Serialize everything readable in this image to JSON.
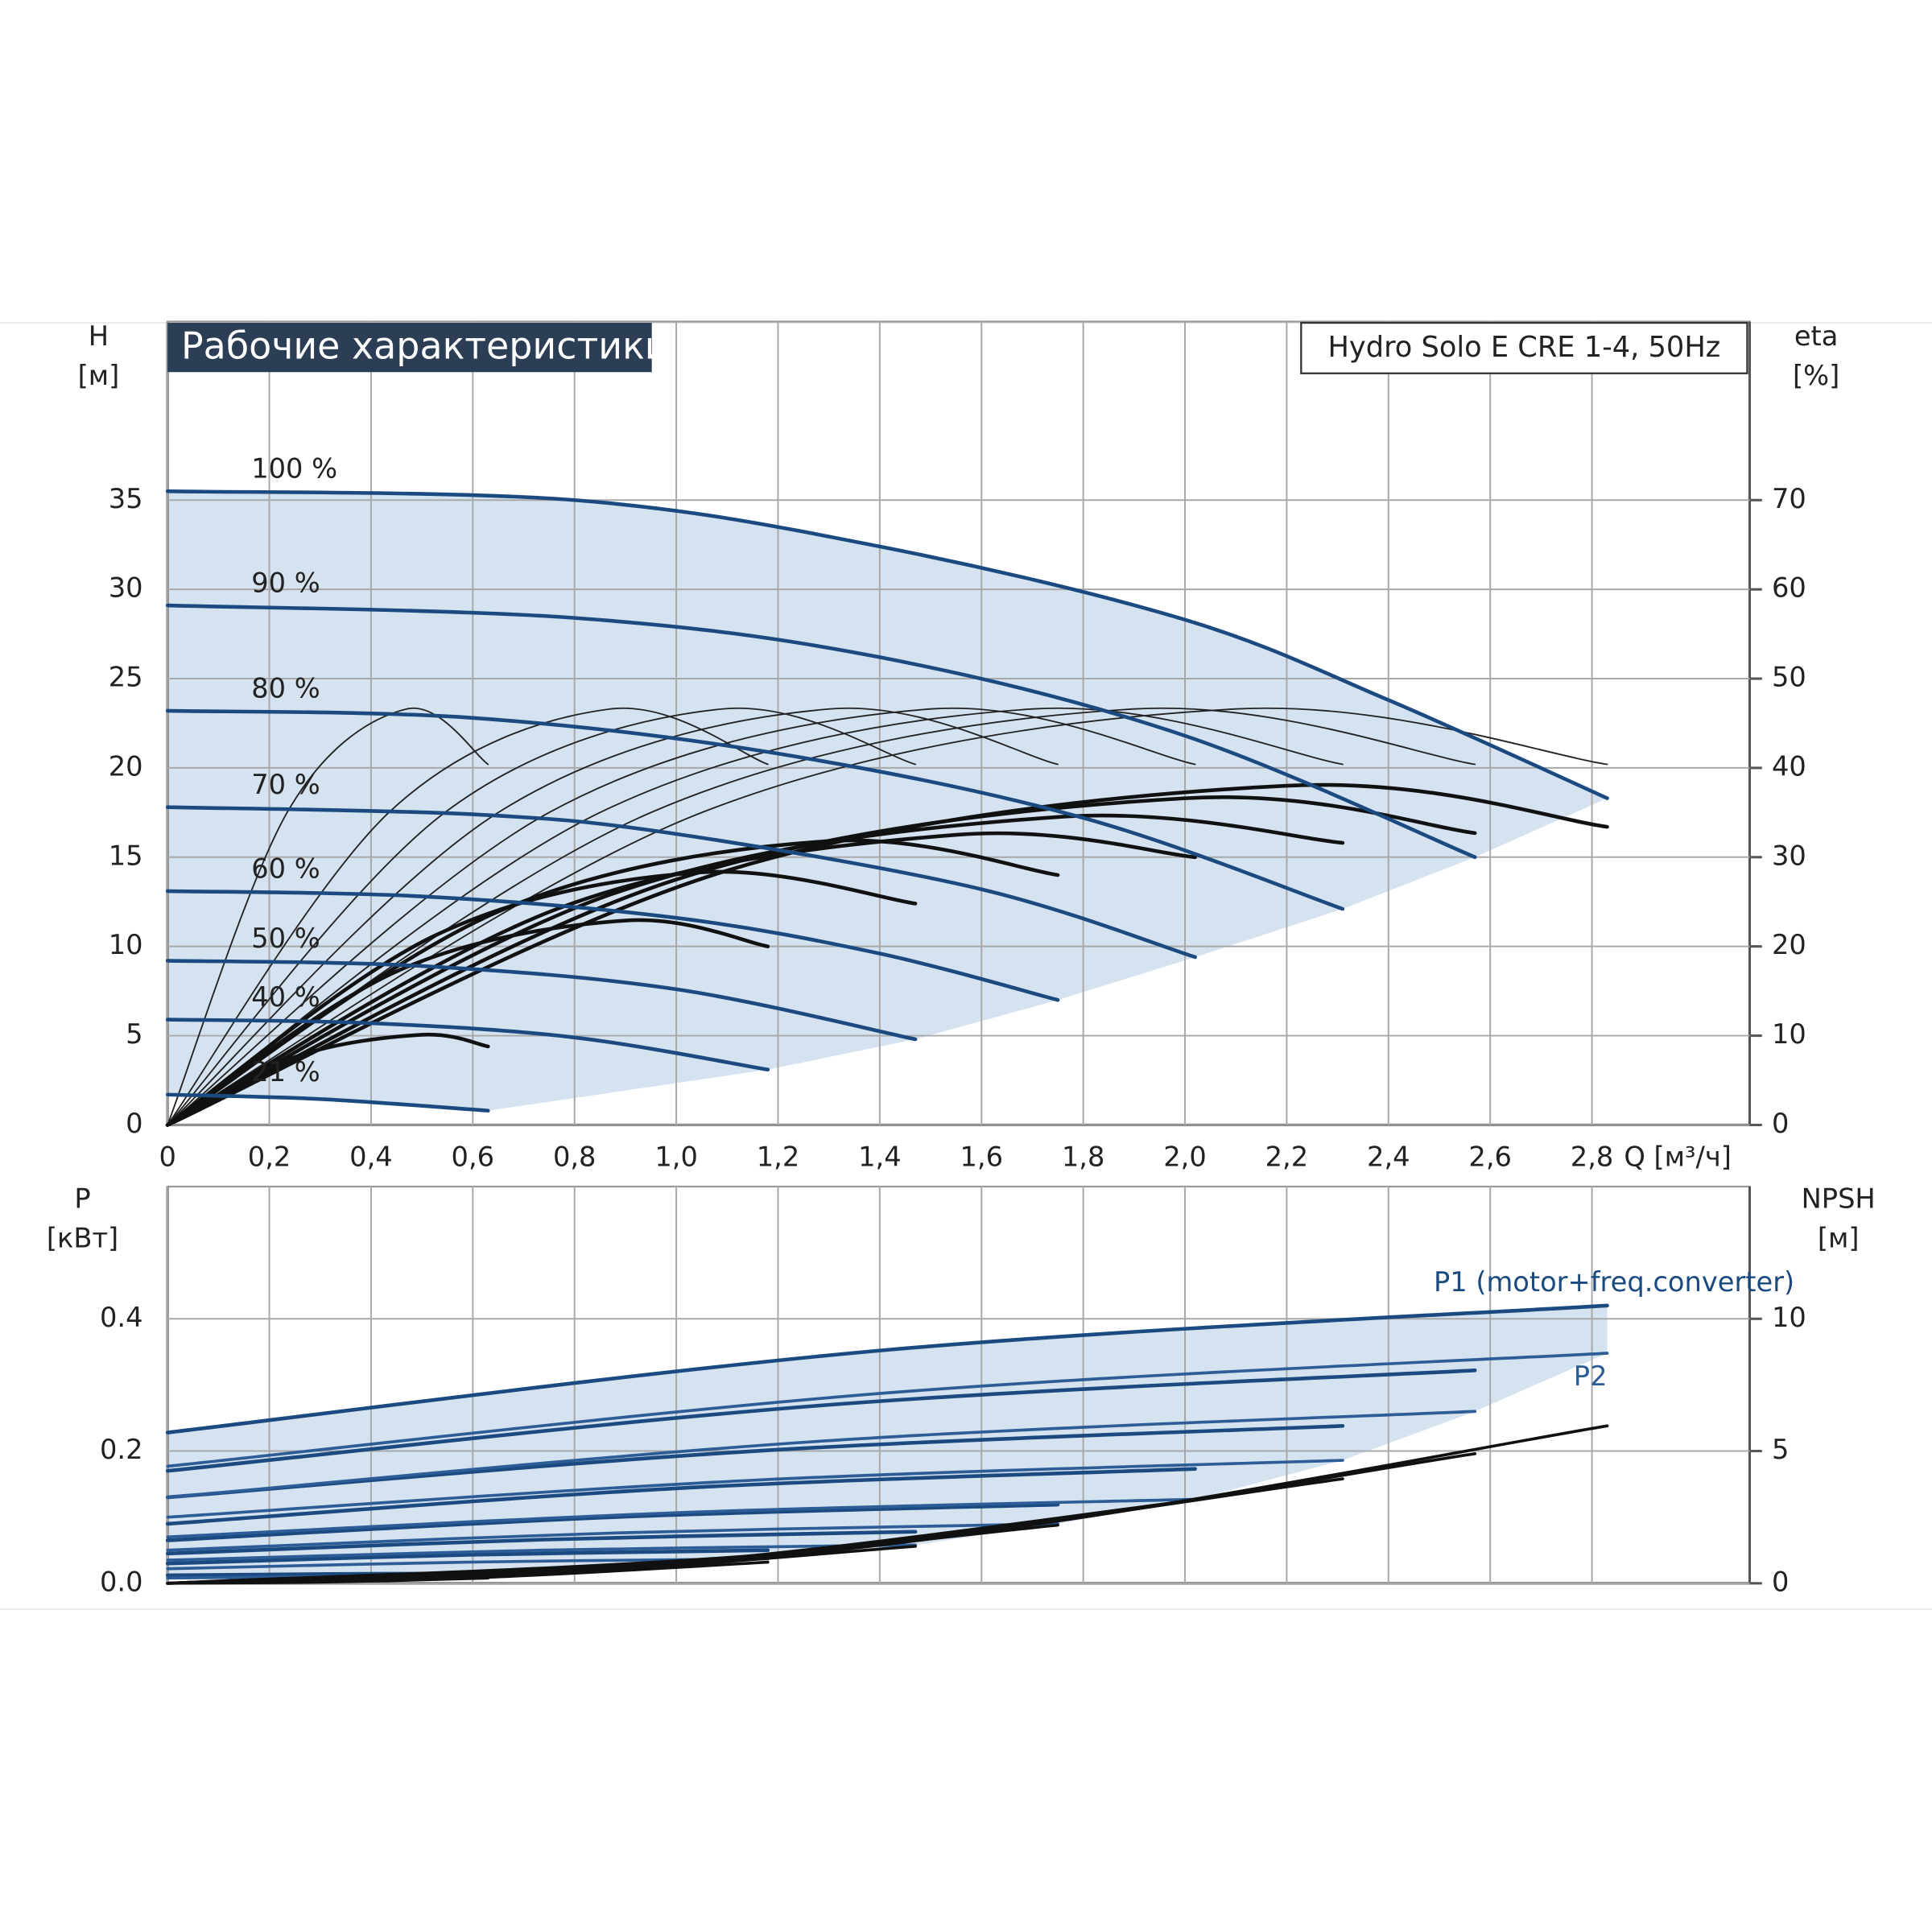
{
  "chart_data": [
    {
      "type": "line",
      "title": "Рабочие характеристики",
      "subtitle": "Hydro Solo E CRE 1-4, 50Hz",
      "ylabel": "H",
      "ylabel_unit": "[м]",
      "y2label": "eta",
      "y2label_unit": "[%]",
      "xlabel": "Q [м³/ч]",
      "xlim": [
        0,
        3.11
      ],
      "ylim": [
        0,
        45
      ],
      "y2lim": [
        0,
        90
      ],
      "xticks": [
        0,
        {
          "value": 0.2,
          "label": "0,2"
        },
        {
          "value": 0.4,
          "label": "0,4"
        },
        {
          "value": 0.6,
          "label": "0,6"
        },
        {
          "value": 0.8,
          "label": "0,8"
        },
        {
          "value": 1.0,
          "label": "1,0"
        },
        {
          "value": 1.2,
          "label": "1,2"
        },
        {
          "value": 1.4,
          "label": "1,4"
        },
        {
          "value": 1.6,
          "label": "1,6"
        },
        {
          "value": 1.8,
          "label": "1,8"
        },
        {
          "value": 2.0,
          "label": "2,0"
        },
        {
          "value": 2.2,
          "label": "2,2"
        },
        {
          "value": 2.4,
          "label": "2,4"
        },
        {
          "value": 2.6,
          "label": "2,6"
        },
        {
          "value": 2.8,
          "label": "2,8"
        }
      ],
      "yticks": [
        0,
        5,
        10,
        15,
        20,
        25,
        30,
        35
      ],
      "y2ticks": [
        0,
        10,
        20,
        30,
        40,
        50,
        60,
        70
      ],
      "grid": true,
      "fill_color": "#d3e0ee",
      "series": [
        {
          "name": "100 %",
          "color": "#1a4a80",
          "x": [
            0,
            0.8,
            1.4,
            2.0,
            2.4,
            2.83
          ],
          "values": [
            35.5,
            35,
            32.4,
            28.3,
            23.8,
            18.3
          ]
        },
        {
          "name": "90 %",
          "color": "#1a4a80",
          "x": [
            0,
            0.8,
            1.4,
            2.0,
            2.57
          ],
          "values": [
            29.1,
            28.4,
            26.2,
            21.8,
            15.0
          ]
        },
        {
          "name": "80 %",
          "color": "#1a4a80",
          "x": [
            0,
            0.6,
            1.2,
            1.8,
            2.31
          ],
          "values": [
            23.2,
            22.8,
            20.8,
            17.2,
            12.1
          ]
        },
        {
          "name": "70 %",
          "color": "#1a4a80",
          "x": [
            0,
            0.6,
            1.0,
            1.6,
            2.02
          ],
          "values": [
            17.8,
            17.4,
            16.3,
            13.2,
            9.4
          ]
        },
        {
          "name": "60 %",
          "color": "#1a4a80",
          "x": [
            0,
            0.5,
            1.0,
            1.4,
            1.75
          ],
          "values": [
            13.1,
            12.8,
            11.6,
            9.6,
            7.0
          ]
        },
        {
          "name": "50 %",
          "color": "#1a4a80",
          "x": [
            0,
            0.5,
            1.0,
            1.47
          ],
          "values": [
            9.2,
            8.9,
            7.6,
            4.8
          ]
        },
        {
          "name": "40 %",
          "color": "#1a4a80",
          "x": [
            0,
            0.4,
            0.8,
            1.18
          ],
          "values": [
            5.9,
            5.7,
            4.9,
            3.1
          ]
        },
        {
          "name": "21 %",
          "color": "#1a4a80",
          "x": [
            0,
            0.3,
            0.63
          ],
          "values": [
            1.7,
            1.45,
            0.8
          ]
        }
      ],
      "efficiency": [
        {
          "axis": "y2",
          "color": "#111111",
          "x": [
            0,
            1.1,
            2.2,
            2.83
          ],
          "values": [
            0,
            28.5,
            38,
            33.4
          ]
        },
        {
          "axis": "y2",
          "color": "#111111",
          "x": [
            0,
            1.0,
            2.0,
            2.57
          ],
          "values": [
            0,
            27.5,
            36.6,
            32.7
          ]
        },
        {
          "axis": "y2",
          "color": "#111111",
          "x": [
            0,
            0.875,
            1.75,
            2.31
          ],
          "values": [
            0,
            25.9,
            34.5,
            31.6
          ]
        },
        {
          "axis": "y2",
          "color": "#111111",
          "x": [
            0,
            0.775,
            1.55,
            2.02
          ],
          "values": [
            0,
            24.4,
            32.5,
            30
          ]
        },
        {
          "axis": "y2",
          "color": "#111111",
          "x": [
            0,
            0.65,
            1.3,
            1.75
          ],
          "values": [
            0,
            23.9,
            31.8,
            28
          ]
        },
        {
          "axis": "y2",
          "color": "#111111",
          "x": [
            0,
            0.525,
            1.05,
            1.47
          ],
          "values": [
            0,
            21.2,
            28.3,
            24.8
          ]
        },
        {
          "axis": "y2",
          "color": "#111111",
          "x": [
            0,
            0.45,
            0.9,
            1.18
          ],
          "values": [
            0,
            17.2,
            22.9,
            20
          ]
        },
        {
          "axis": "y2",
          "color": "#111111",
          "x": [
            0,
            0.25,
            0.5,
            0.63
          ],
          "values": [
            0,
            7.6,
            10.1,
            8.8
          ]
        }
      ],
      "efficiency_thin": [
        {
          "axis": "y2",
          "color": "#222222",
          "x": [
            0,
            1.05,
            2.1,
            2.83
          ],
          "values": [
            0,
            35,
            46.6,
            40.4
          ]
        },
        {
          "axis": "y2",
          "color": "#222222",
          "x": [
            0,
            0.95,
            1.9,
            2.57
          ],
          "values": [
            0,
            35,
            46.6,
            40.4
          ]
        },
        {
          "axis": "y2",
          "color": "#222222",
          "x": [
            0,
            0.85,
            1.7,
            2.31
          ],
          "values": [
            0,
            35,
            46.6,
            40.4
          ]
        },
        {
          "axis": "y2",
          "color": "#222222",
          "x": [
            0,
            0.75,
            1.5,
            2.02
          ],
          "values": [
            0,
            35,
            46.6,
            40.4
          ]
        },
        {
          "axis": "y2",
          "color": "#222222",
          "x": [
            0,
            0.65,
            1.3,
            1.75
          ],
          "values": [
            0,
            35,
            46.6,
            40.4
          ]
        },
        {
          "axis": "y2",
          "color": "#222222",
          "x": [
            0,
            0.545,
            1.09,
            1.47
          ],
          "values": [
            0,
            35,
            46.6,
            40.4
          ]
        },
        {
          "axis": "y2",
          "color": "#222222",
          "x": [
            0,
            0.435,
            0.87,
            1.18
          ],
          "values": [
            0,
            35,
            46.6,
            40.4
          ]
        },
        {
          "axis": "y2",
          "color": "#222222",
          "x": [
            0,
            0.235,
            0.47,
            0.63
          ],
          "values": [
            0,
            35,
            46.6,
            40.4
          ]
        }
      ]
    },
    {
      "type": "line",
      "ylabel": "P",
      "ylabel_unit": "[кВт]",
      "y2label": "NPSH",
      "y2label_unit": "[м]",
      "xlim": [
        0,
        3.11
      ],
      "ylim": [
        0,
        0.6
      ],
      "y2lim": [
        0,
        15
      ],
      "yticks": [
        {
          "value": 0,
          "label": "0.0"
        },
        0.2,
        0.4
      ],
      "y2ticks": [
        0,
        5,
        10
      ],
      "grid": true,
      "fill_color": "#d3e0ee",
      "series": [
        {
          "name": "P1 (motor+freq.converter)",
          "color": "#1a4a80",
          "curves": [
            {
              "x": [
                0,
                1.415,
                2.83
              ],
              "values": [
                0.228,
                0.353,
                0.42
              ]
            },
            {
              "x": [
                0,
                1.285,
                2.57
              ],
              "values": [
                0.17,
                0.269,
                0.322
              ]
            },
            {
              "x": [
                0,
                1.155,
                2.31
              ],
              "values": [
                0.13,
                0.2,
                0.238
              ]
            },
            {
              "x": [
                0,
                1.01,
                2.02
              ],
              "values": [
                0.09,
                0.144,
                0.173
              ]
            },
            {
              "x": [
                0,
                0.875,
                1.75
              ],
              "values": [
                0.065,
                0.1,
                0.119
              ]
            },
            {
              "x": [
                0,
                0.735,
                1.47
              ],
              "values": [
                0.045,
                0.066,
                0.078
              ]
            },
            {
              "x": [
                0,
                0.59,
                1.18
              ],
              "values": [
                0.03,
                0.043,
                0.05
              ]
            },
            {
              "x": [
                0,
                0.315,
                0.63
              ],
              "values": [
                0.012,
                0.014,
                0.015
              ]
            }
          ]
        },
        {
          "name": "P2",
          "color": "#2d5d96",
          "curves": [
            {
              "x": [
                0,
                1.415,
                2.83
              ],
              "values": [
                0.177,
                0.288,
                0.348
              ]
            },
            {
              "x": [
                0,
                1.285,
                2.57
              ],
              "values": [
                0.13,
                0.215,
                0.26
              ]
            },
            {
              "x": [
                0,
                1.155,
                2.31
              ],
              "values": [
                0.1,
                0.156,
                0.186
              ]
            },
            {
              "x": [
                0,
                1.01,
                2.02
              ],
              "values": [
                0.07,
                0.107,
                0.127
              ]
            },
            {
              "x": [
                0,
                0.875,
                1.75
              ],
              "values": [
                0.05,
                0.076,
                0.09
              ]
            },
            {
              "x": [
                0,
                0.735,
                1.47
              ],
              "values": [
                0.035,
                0.05,
                0.058
              ]
            },
            {
              "x": [
                0,
                0.59,
                1.18
              ],
              "values": [
                0.022,
                0.032,
                0.037
              ]
            },
            {
              "x": [
                0,
                0.315,
                0.63
              ],
              "values": [
                0.008,
                0.01,
                0.011
              ]
            }
          ]
        },
        {
          "axis": "y2",
          "color": "#111111",
          "curves": [
            {
              "x": [
                0,
                1.415,
                2.83
              ],
              "values": [
                0,
                1.5,
                5.95
              ]
            },
            {
              "x": [
                0,
                1.285,
                2.57
              ],
              "values": [
                0,
                1.2,
                4.9
              ]
            },
            {
              "x": [
                0,
                1.155,
                2.31
              ],
              "values": [
                0,
                1.0,
                3.95
              ]
            },
            {
              "x": [
                0,
                1.01,
                2.02
              ],
              "values": [
                0,
                0.8,
                3.15
              ]
            },
            {
              "x": [
                0,
                0.875,
                1.75
              ],
              "values": [
                0,
                0.55,
                2.2
              ]
            },
            {
              "x": [
                0,
                0.735,
                1.47
              ],
              "values": [
                0,
                0.35,
                1.4
              ]
            },
            {
              "x": [
                0,
                0.59,
                1.18
              ],
              "values": [
                0,
                0.2,
                0.8
              ]
            },
            {
              "x": [
                0,
                0.315,
                0.63
              ],
              "values": [
                0,
                0.05,
                0.2
              ]
            }
          ]
        }
      ]
    }
  ]
}
